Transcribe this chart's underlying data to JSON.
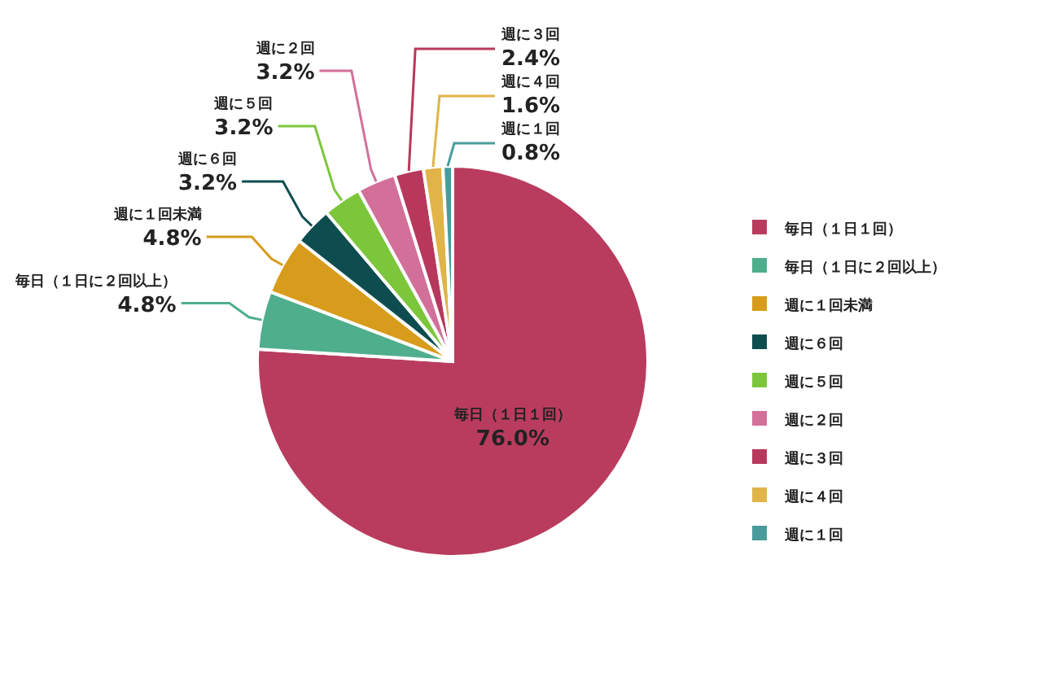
{
  "chart_data": {
    "type": "pie",
    "categories": [
      "毎日（１日１回）",
      "毎日（１日に２回以上）",
      "週に１回未満",
      "週に６回",
      "週に５回",
      "週に２回",
      "週に３回",
      "週に４回",
      "週に１回"
    ],
    "values": [
      76.0,
      4.8,
      4.8,
      3.2,
      3.2,
      3.2,
      2.4,
      1.6,
      0.8
    ],
    "colors": [
      "#b93c5e",
      "#4fae8c",
      "#d89c1c",
      "#0e4d4f",
      "#7cc63c",
      "#d2709a",
      "#b8385c",
      "#e0b448",
      "#4a9c9c"
    ],
    "value_labels": [
      "76.0%",
      "4.8%",
      "4.8%",
      "3.2%",
      "3.2%",
      "3.2%",
      "2.4%",
      "1.6%",
      "0.8%"
    ],
    "legend": "right"
  }
}
